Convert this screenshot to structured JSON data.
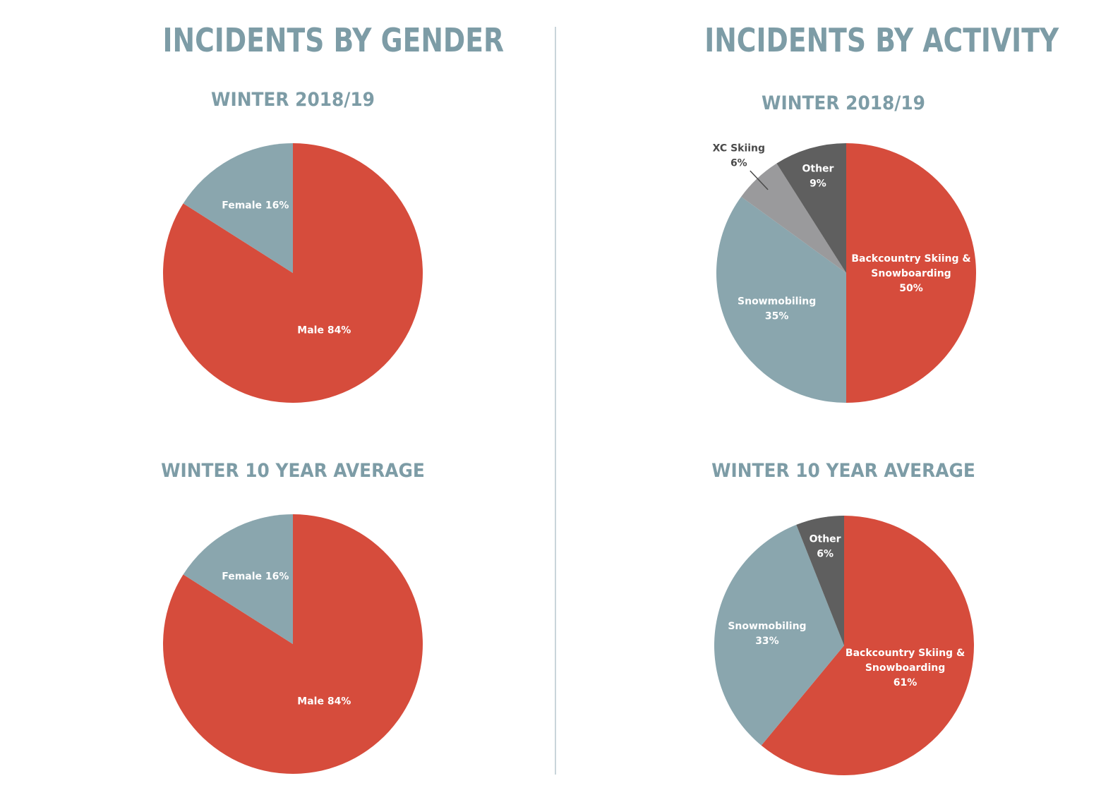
{
  "sections": {
    "gender_title": "INCIDENTS BY GENDER",
    "activity_title": "INCIDENTS BY ACTIVITY"
  },
  "colors": {
    "heading": "#7d9ca6",
    "red": "#d64c3c",
    "blue_grey": "#8aa6ae",
    "light_grey": "#9a9a9c",
    "dark_grey": "#5f5f5f",
    "divider": "#c9d5da"
  },
  "chart_data": [
    {
      "type": "pie",
      "title": "WINTER 2018/19",
      "slices": [
        {
          "label": "Male 84%",
          "value": 84,
          "color": "#d64c3c"
        },
        {
          "label": "Female 16%",
          "value": 16,
          "color": "#8aa6ae"
        }
      ]
    },
    {
      "type": "pie",
      "title": "WINTER 10 YEAR AVERAGE",
      "slices": [
        {
          "label": "Male 84%",
          "value": 84,
          "color": "#d64c3c"
        },
        {
          "label": "Female 16%",
          "value": 16,
          "color": "#8aa6ae"
        }
      ]
    },
    {
      "type": "pie",
      "title": "WINTER 2018/19",
      "slices": [
        {
          "label": [
            "Backcountry Skiing &",
            "Snowboarding",
            "50%"
          ],
          "value": 50,
          "color": "#d64c3c"
        },
        {
          "label": [
            "Snowmobiling",
            "35%"
          ],
          "value": 35,
          "color": "#8aa6ae"
        },
        {
          "label": [
            "XC Skiing",
            "6%"
          ],
          "value": 6,
          "color": "#9a9a9c",
          "outside": true
        },
        {
          "label": [
            "Other",
            "9%"
          ],
          "value": 9,
          "color": "#5f5f5f"
        }
      ]
    },
    {
      "type": "pie",
      "title": "WINTER 10 YEAR AVERAGE",
      "slices": [
        {
          "label": [
            "Backcountry Skiing &",
            "Snowboarding",
            "61%"
          ],
          "value": 61,
          "color": "#d64c3c"
        },
        {
          "label": [
            "Snowmobiling",
            "33%"
          ],
          "value": 33,
          "color": "#8aa6ae"
        },
        {
          "label": [
            "Other",
            "6%"
          ],
          "value": 6,
          "color": "#5f5f5f"
        }
      ]
    }
  ]
}
